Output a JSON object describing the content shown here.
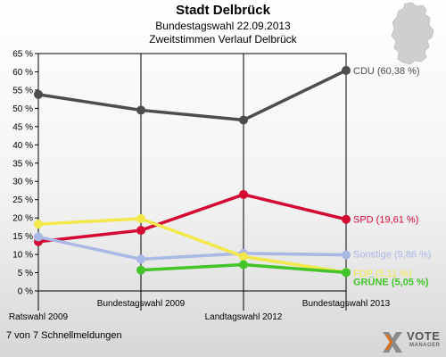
{
  "title": "Stadt Delbrück",
  "subtitle1": "Bundestagswahl 22.09.2013",
  "subtitle2": "Zweitstimmen Verlauf Delbrück",
  "footer": "7 von 7 Schnellmeldungen",
  "logo": {
    "line1": "VOTE",
    "line2": "MANAGER"
  },
  "icons": {
    "map": "germany-map-icon",
    "logo": "vote-manager-logo-icon"
  },
  "chart_data": {
    "type": "line",
    "categories": [
      "Ratswahl 2009",
      "Bundestagswahl 2009",
      "Landtagswahl 2012",
      "Bundestagswahl 2013"
    ],
    "y_unit": "%",
    "ylim": [
      0,
      65
    ],
    "ytick_step": 5,
    "grid": false,
    "series": [
      {
        "name": "CDU",
        "label": "CDU (60,38 %)",
        "color": "#4d4d4d",
        "values": [
          53.8,
          49.5,
          46.8,
          60.38
        ]
      },
      {
        "name": "SPD",
        "label": "SPD (19,61 %)",
        "color": "#d40a33",
        "values": [
          13.5,
          16.6,
          26.4,
          19.61
        ]
      },
      {
        "name": "Sonstige",
        "label": "Sonstige (9,86 %)",
        "color": "#aab8e6",
        "values": [
          14.8,
          8.7,
          10.3,
          9.86
        ]
      },
      {
        "name": "FDP",
        "label": "FDP (5,11 %)",
        "color": "#f2e84a",
        "values": [
          18.3,
          19.8,
          9.4,
          5.11
        ]
      },
      {
        "name": "GRÜNE",
        "label": "GRÜNE (5,05 %)",
        "color": "#43c52a",
        "values": [
          null,
          5.7,
          7.2,
          5.05
        ]
      }
    ]
  }
}
